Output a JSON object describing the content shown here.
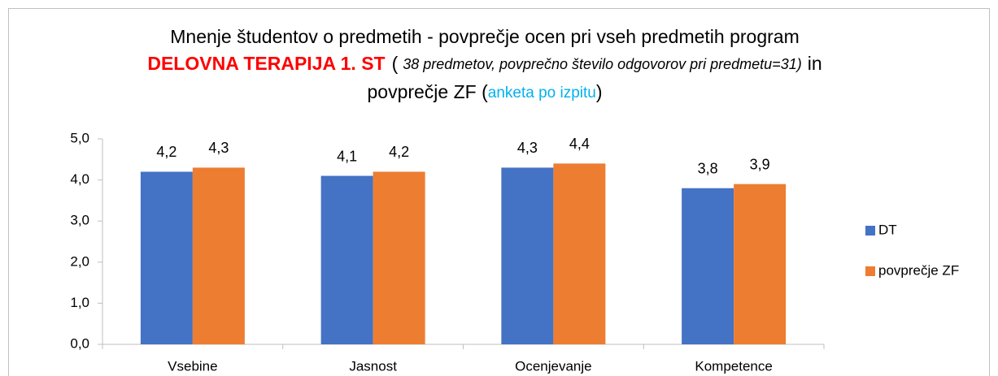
{
  "chart_data": {
    "type": "bar",
    "title_parts": [
      "Mnenje študentov o predmetih - povprečje ocen pri vseh predmetih program",
      "DELOVNA TERAPIJA 1. ST",
      "(",
      "38 predmetov, povprečno število odgovorov pri predmetu=31)",
      "in",
      "povprečje ZF (",
      "anketa po izpitu",
      ")"
    ],
    "categories": [
      "Vsebine",
      "Jasnost",
      "Ocenjevanje",
      "Kompetence"
    ],
    "series": [
      {
        "name": "DT",
        "color": "#4472c4",
        "label_color": "#ff0000",
        "values": [
          4.2,
          4.1,
          4.3,
          3.8
        ],
        "value_labels": [
          "4,2",
          "4,1",
          "4,3",
          "3,8"
        ]
      },
      {
        "name": "povprečje ZF",
        "color": "#ed7d31",
        "label_color": "#000000",
        "values": [
          4.3,
          4.2,
          4.4,
          3.9
        ],
        "value_labels": [
          "4,3",
          "4,2",
          "4,4",
          "3,9"
        ]
      }
    ],
    "ylim": [
      0,
      5
    ],
    "yticks": [
      {
        "value": 0,
        "label": "0,0"
      },
      {
        "value": 1,
        "label": "1,0"
      },
      {
        "value": 2,
        "label": "2,0"
      },
      {
        "value": 3,
        "label": "3,0"
      },
      {
        "value": 4,
        "label": "4,0"
      },
      {
        "value": 5,
        "label": "5,0"
      }
    ],
    "legend": "right"
  }
}
